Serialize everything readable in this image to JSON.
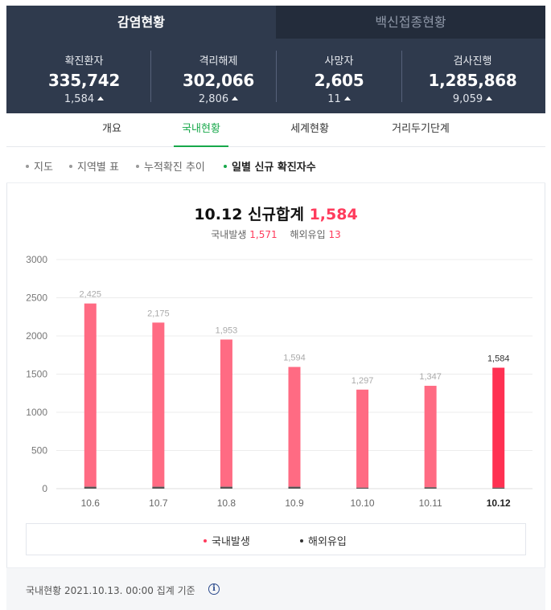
{
  "top_tabs": [
    "감염현황",
    "백신접종현황"
  ],
  "stats": [
    {
      "label": "확진환자",
      "value": "335,742",
      "delta": "1,584"
    },
    {
      "label": "격리해제",
      "value": "302,066",
      "delta": "2,806"
    },
    {
      "label": "사망자",
      "value": "2,605",
      "delta": "11"
    },
    {
      "label": "검사진행",
      "value": "1,285,868",
      "delta": "9,059"
    }
  ],
  "tabs": [
    "개요",
    "국내현황",
    "세계현황",
    "거리두기단계"
  ],
  "subtabs": [
    "지도",
    "지역별 표",
    "누적확진 추이",
    "일별 신규 확진자수"
  ],
  "summary": {
    "date": "10.12 신규합계",
    "total": "1,584",
    "domestic_label": "국내발생",
    "domestic": "1,571",
    "overseas_label": "해외유입",
    "overseas": "13"
  },
  "chart_data": {
    "type": "bar",
    "categories": [
      "10.6",
      "10.7",
      "10.8",
      "10.9",
      "10.10",
      "10.11",
      "10.12"
    ],
    "series": [
      {
        "name": "국내발생",
        "values": [
          2400,
          2150,
          1928,
          1569,
          1284,
          1329,
          1571
        ],
        "color": "#ff6b83"
      },
      {
        "name": "해외유입",
        "values": [
          25,
          25,
          25,
          25,
          13,
          18,
          13
        ],
        "color": "#555555"
      }
    ],
    "totals": [
      "2,425",
      "2,175",
      "1,953",
      "1,594",
      "1,297",
      "1,347",
      "1,584"
    ],
    "highlight_color": "#ff3152",
    "yticks": [
      0,
      500,
      1000,
      1500,
      2000,
      2500,
      3000
    ],
    "ylim": [
      0,
      3000
    ],
    "grid": true
  },
  "legend": [
    "국내발생",
    "해외유입"
  ],
  "footer": "국내현황 2021.10.13. 00:00 집계 기준",
  "colors": {
    "accent": "#17a84a",
    "red": "#ff3b5c",
    "panel": "#2f3a4d"
  },
  "icons": {
    "info": "info-icon",
    "up": "triangle-up-icon"
  }
}
